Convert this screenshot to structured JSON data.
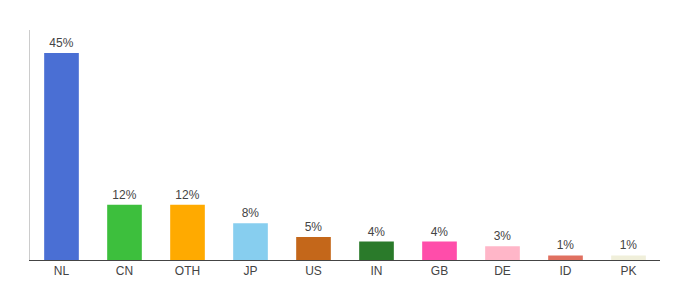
{
  "chart_data": {
    "type": "bar",
    "categories": [
      "NL",
      "CN",
      "OTH",
      "JP",
      "US",
      "IN",
      "GB",
      "DE",
      "ID",
      "PK"
    ],
    "values": [
      45,
      12,
      12,
      8,
      5,
      4,
      4,
      3,
      1,
      1
    ],
    "value_labels": [
      "45%",
      "12%",
      "12%",
      "8%",
      "5%",
      "4%",
      "4%",
      "3%",
      "1%",
      "1%"
    ],
    "colors": [
      "#4a6fd4",
      "#3dbf3d",
      "#ffaa00",
      "#87ceef",
      "#c4671a",
      "#2a7a2a",
      "#ff4daa",
      "#ffb6c8",
      "#e07060",
      "#f0efda"
    ],
    "ylim": [
      0,
      50
    ],
    "data_labels": true,
    "tick_labels": "x",
    "grid": false
  }
}
